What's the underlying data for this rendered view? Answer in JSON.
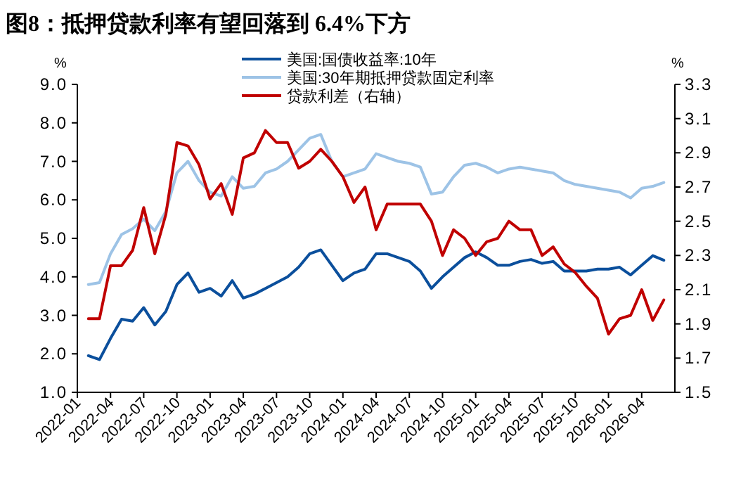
{
  "chart_data": {
    "type": "line",
    "title": "图8：抵押贷款利率有望回落到 6.4%下方",
    "ylabel": "%",
    "y2label": "%",
    "x": [
      "2022-02",
      "2022-03",
      "2022-04",
      "2022-05",
      "2022-06",
      "2022-07",
      "2022-08",
      "2022-09",
      "2022-10",
      "2022-11",
      "2022-12",
      "2023-01",
      "2023-02",
      "2023-03",
      "2023-04",
      "2023-05",
      "2023-06",
      "2023-07",
      "2023-08",
      "2023-09",
      "2023-10",
      "2023-11",
      "2023-12",
      "2024-01",
      "2024-02",
      "2024-03",
      "2024-04",
      "2024-05",
      "2024-06",
      "2024-07",
      "2024-08",
      "2024-09",
      "2024-10",
      "2024-11",
      "2024-12",
      "2025-01",
      "2025-02",
      "2025-03",
      "2025-04",
      "2025-05",
      "2025-06",
      "2025-07",
      "2025-08",
      "2025-09",
      "2025-10",
      "2025-11",
      "2025-12",
      "2026-01",
      "2026-02",
      "2026-03",
      "2026-04",
      "2026-05",
      "2026-06"
    ],
    "series": [
      {
        "name": "美国:国债收益率:10年",
        "color": "#0b4f9c",
        "values": [
          1.95,
          1.85,
          2.4,
          2.9,
          2.85,
          3.2,
          2.75,
          3.1,
          3.8,
          4.1,
          3.6,
          3.7,
          3.5,
          3.9,
          3.45,
          3.55,
          3.7,
          3.85,
          4.0,
          4.25,
          4.6,
          4.7,
          4.3,
          3.9,
          4.1,
          4.2,
          4.6,
          4.6,
          4.5,
          4.4,
          4.15,
          3.7,
          4.0,
          4.25,
          4.5,
          4.65,
          4.5,
          4.3,
          4.3,
          4.4,
          4.45,
          4.35,
          4.4,
          4.15,
          4.15,
          4.15,
          4.2,
          4.2,
          4.25,
          4.05,
          4.3,
          4.55,
          4.43
        ]
      },
      {
        "name": "美国:30年期抵押贷款固定利率",
        "color": "#9dc3e6",
        "values": [
          3.8,
          3.85,
          4.6,
          5.1,
          5.25,
          5.5,
          5.2,
          5.7,
          6.7,
          7.0,
          6.5,
          6.2,
          6.1,
          6.6,
          6.3,
          6.35,
          6.7,
          6.8,
          7.0,
          7.3,
          7.6,
          7.7,
          7.0,
          6.6,
          6.7,
          6.8,
          7.2,
          7.1,
          7.0,
          6.95,
          6.85,
          6.15,
          6.2,
          6.6,
          6.9,
          6.95,
          6.85,
          6.7,
          6.8,
          6.85,
          6.8,
          6.75,
          6.7,
          6.5,
          6.4,
          6.35,
          6.3,
          6.25,
          6.2,
          6.05,
          6.3,
          6.35,
          6.45
        ]
      },
      {
        "name": "贷款利差（右轴）",
        "color": "#c00000",
        "axis": "y2",
        "values": [
          1.93,
          1.93,
          2.24,
          2.24,
          2.33,
          2.58,
          2.31,
          2.54,
          2.96,
          2.94,
          2.83,
          2.63,
          2.72,
          2.54,
          2.87,
          2.9,
          3.03,
          2.96,
          2.96,
          2.81,
          2.85,
          2.92,
          2.85,
          2.76,
          2.61,
          2.7,
          2.45,
          2.6,
          2.6,
          2.6,
          2.6,
          2.5,
          2.3,
          2.45,
          2.4,
          2.3,
          2.38,
          2.4,
          2.5,
          2.45,
          2.45,
          2.3,
          2.35,
          2.25,
          2.2,
          2.12,
          2.05,
          1.84,
          1.93,
          1.95,
          2.1,
          1.92,
          2.04
        ]
      }
    ],
    "xlim": [
      "2022-01",
      "2026-07"
    ],
    "xticks": [
      "2022-01",
      "2022-04",
      "2022-07",
      "2022-10",
      "2023-01",
      "2023-04",
      "2023-07",
      "2023-10",
      "2024-01",
      "2024-04",
      "2024-07",
      "2024-10",
      "2025-01",
      "2025-04",
      "2025-07",
      "2025-10",
      "2026-01",
      "2026-04"
    ],
    "ylim": [
      1,
      9
    ],
    "yticks": [
      {
        "value": 1,
        "label": "1.0"
      },
      {
        "value": 2,
        "label": "2.0"
      },
      {
        "value": 3,
        "label": "3.0"
      },
      {
        "value": 4,
        "label": "4.0"
      },
      {
        "value": 5,
        "label": "5.0"
      },
      {
        "value": 6,
        "label": "6.0"
      },
      {
        "value": 7,
        "label": "7.0"
      },
      {
        "value": 8,
        "label": "8.0"
      },
      {
        "value": 9,
        "label": "9.0"
      }
    ],
    "y2lim": [
      1.5,
      3.3
    ],
    "y2ticks": [
      1.5,
      1.7,
      1.9,
      2.1,
      2.3,
      2.5,
      2.7,
      2.9,
      3.1,
      3.3
    ],
    "legend": "top"
  }
}
